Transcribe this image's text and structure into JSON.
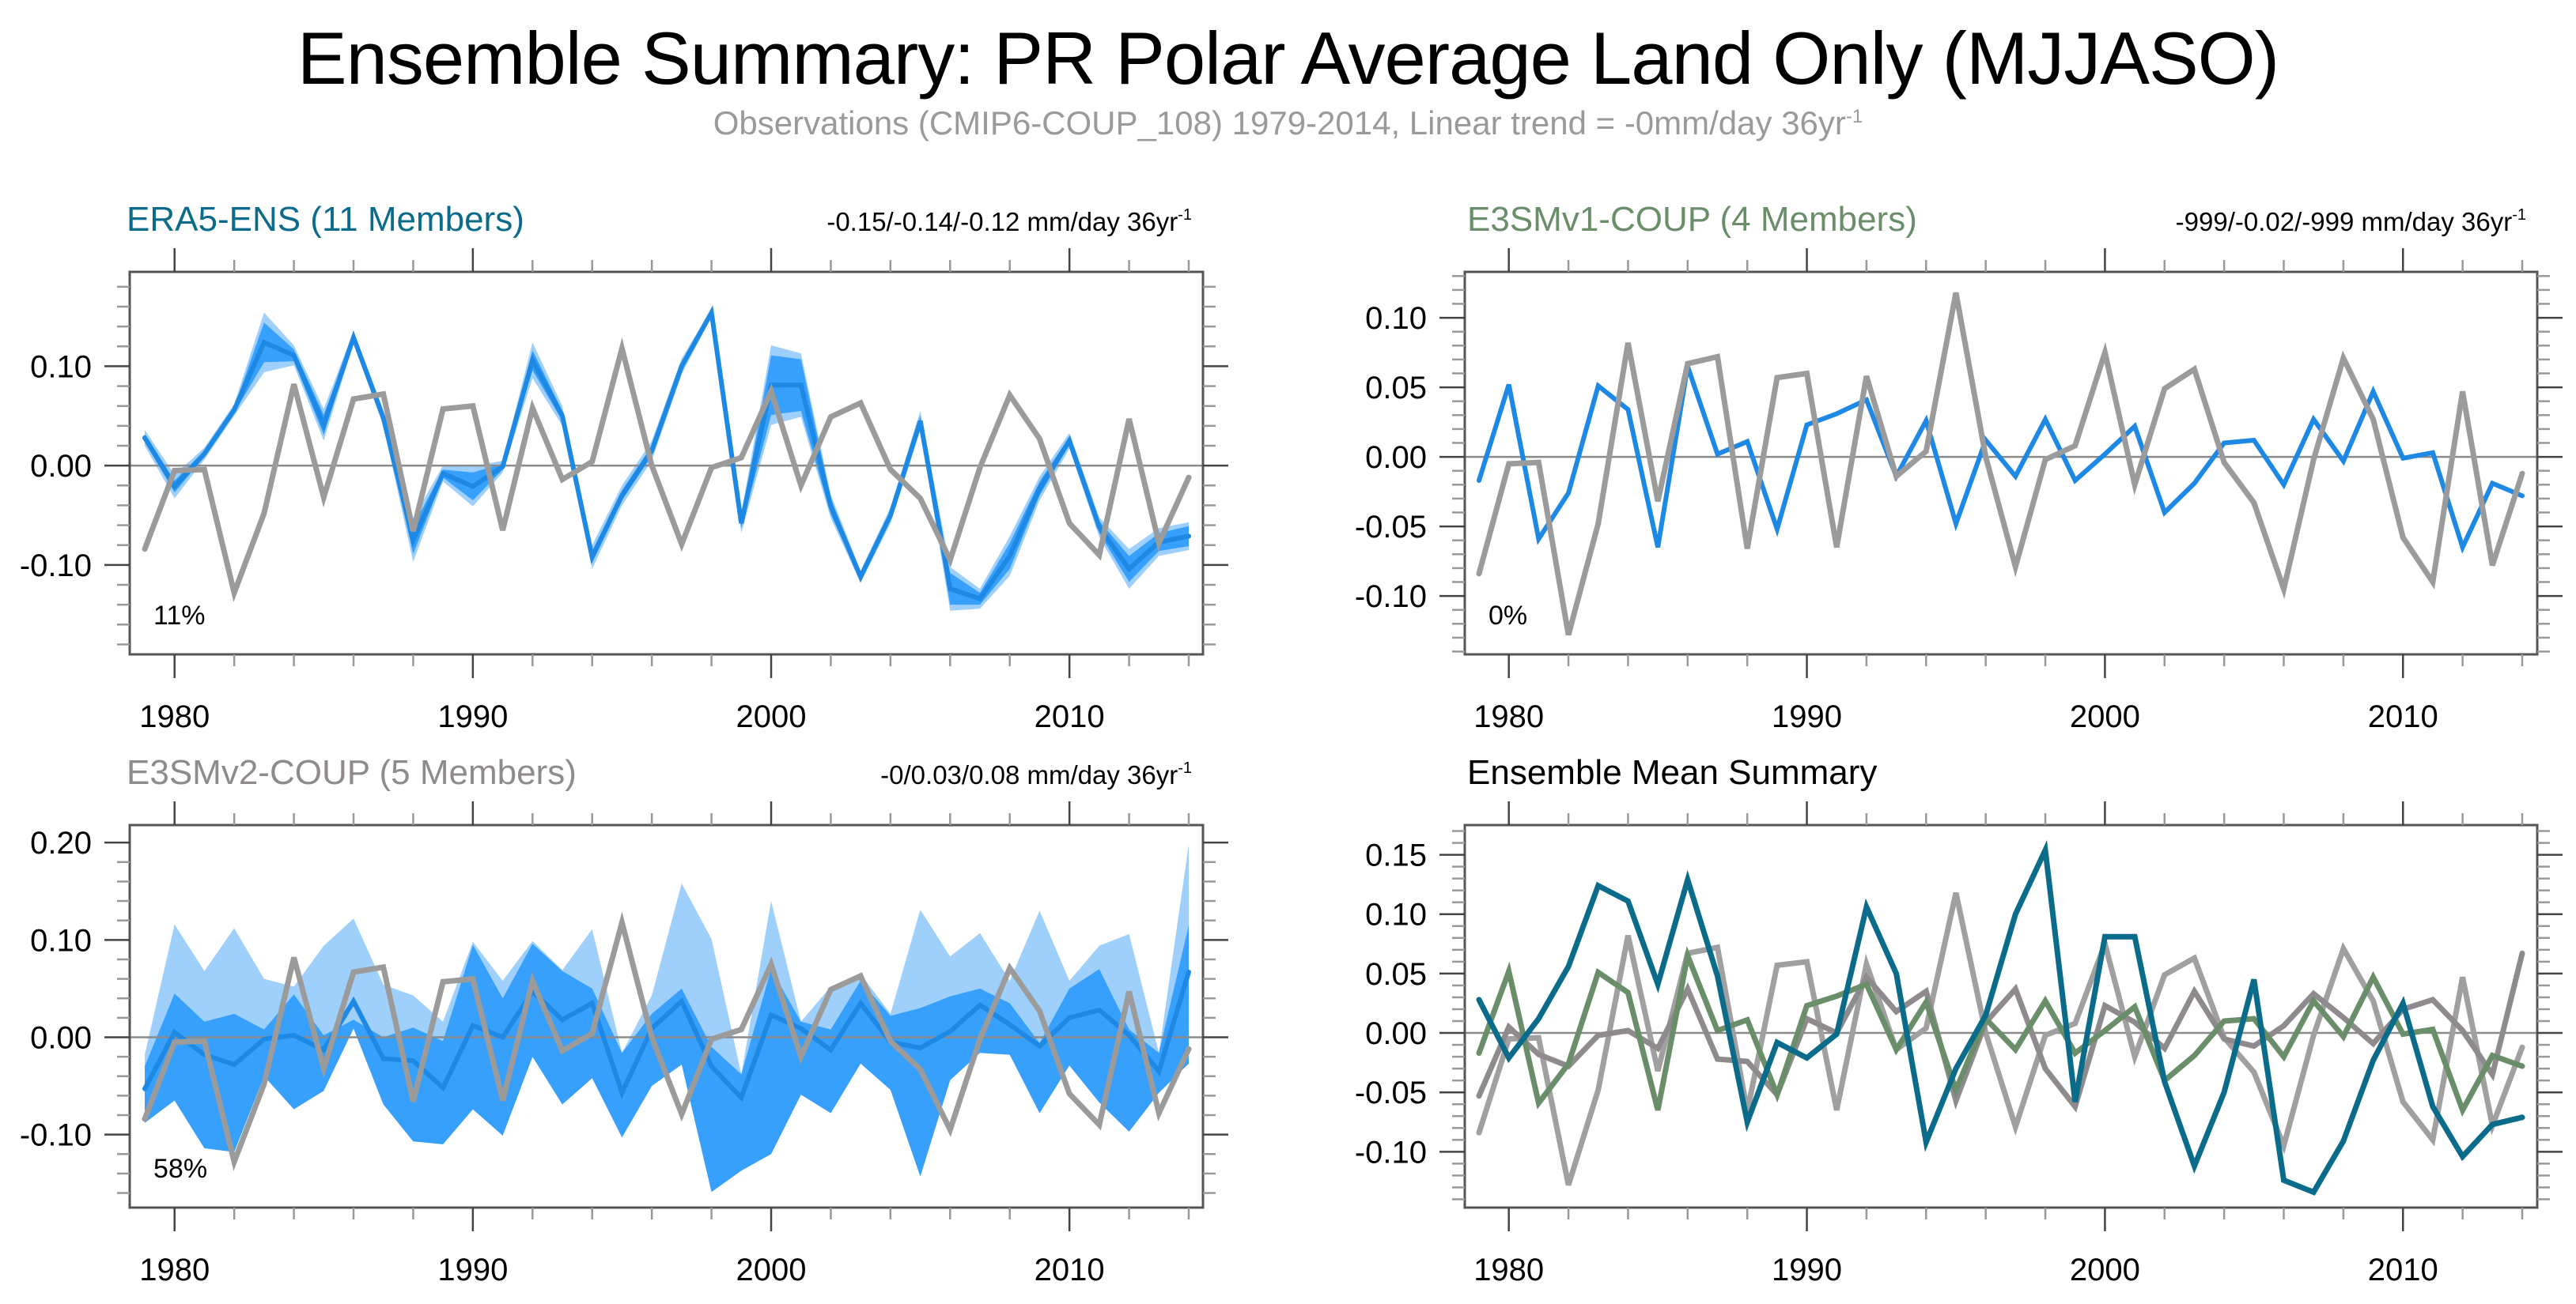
{
  "title": "Ensemble Summary: PR Polar Average Land Only (MJJASO)",
  "subtitle": {
    "text": "Observations (CMIP6-COUP_108) 1979-2014, Linear trend = -0mm/day 36yr",
    "superscript": "-1"
  },
  "colors": {
    "observations": "#9b9b9b",
    "member_line": "#1e88e5",
    "band_outer": "#9fd0fb",
    "band_inner": "#379ffc",
    "era5": "#0a6b8a",
    "e3smv1": "#6a8e6a",
    "e3smv2": "#8f8a8d",
    "zero_line": "#8a8a8a",
    "frame": "#555555"
  },
  "chart_data": [
    {
      "id": "era5",
      "type": "line",
      "title": "ERA5-ENS (11 Members)",
      "title_color": "#0a6b8a",
      "trend_label": "-0.15/-0.14/-0.12 mm/day 36yr",
      "trend_superscript": "-1",
      "percent_label": "11%",
      "xlabel": "",
      "ylabel": "",
      "xlim": [
        1979,
        2014
      ],
      "ylim": [
        -0.19,
        0.195
      ],
      "yticks_major": [
        -0.1,
        0.0,
        0.1
      ],
      "ytick_labels": [
        "-0.10",
        "0.00",
        "0.10"
      ],
      "ytick_minor_step": 0.02,
      "xticks_major": [
        1980,
        1990,
        2000,
        2010
      ],
      "xtick_labels": [
        "1980",
        "1990",
        "2000",
        "2010"
      ],
      "x": [
        1979,
        1980,
        1981,
        1982,
        1983,
        1984,
        1985,
        1986,
        1987,
        1988,
        1989,
        1990,
        1991,
        1992,
        1993,
        1994,
        1995,
        1996,
        1997,
        1998,
        1999,
        2000,
        2001,
        2002,
        2003,
        2004,
        2005,
        2006,
        2007,
        2008,
        2009,
        2010,
        2011,
        2012,
        2013,
        2014
      ],
      "bands": {
        "outer_spread": [
          0.008,
          0.012,
          0.006,
          0.006,
          0.03,
          0.01,
          0.016,
          0.006,
          0.008,
          0.022,
          0.008,
          0.02,
          0.006,
          0.018,
          0.01,
          0.012,
          0.01,
          0.01,
          0.008,
          0.004,
          0.01,
          0.04,
          0.032,
          0.012,
          0.006,
          0.008,
          0.01,
          0.022,
          0.01,
          0.02,
          0.012,
          0.008,
          0.01,
          0.02,
          0.014,
          0.014
        ],
        "inner_spread": [
          0.004,
          0.006,
          0.003,
          0.003,
          0.02,
          0.006,
          0.01,
          0.003,
          0.004,
          0.014,
          0.004,
          0.014,
          0.003,
          0.01,
          0.005,
          0.006,
          0.005,
          0.005,
          0.004,
          0.002,
          0.005,
          0.03,
          0.026,
          0.008,
          0.003,
          0.004,
          0.005,
          0.016,
          0.006,
          0.013,
          0.007,
          0.004,
          0.006,
          0.013,
          0.009,
          0.01
        ]
      },
      "series": [
        {
          "name": "ERA5-ENS ensemble mean",
          "role": "ensemble_mean",
          "values": [
            0.028,
            -0.021,
            0.012,
            0.056,
            0.124,
            0.111,
            0.041,
            0.129,
            0.048,
            -0.075,
            -0.008,
            -0.021,
            -0.001,
            0.106,
            0.05,
            -0.092,
            -0.03,
            0.015,
            0.1,
            0.154,
            -0.058,
            0.081,
            0.081,
            -0.041,
            -0.112,
            -0.05,
            0.045,
            -0.124,
            -0.134,
            -0.091,
            -0.023,
            0.025,
            -0.062,
            -0.104,
            -0.077,
            -0.071
          ]
        },
        {
          "name": "Observations (CMIP6-COUP_108)",
          "role": "observations",
          "values": [
            -0.084,
            -0.005,
            -0.004,
            -0.128,
            -0.048,
            0.082,
            -0.032,
            0.067,
            0.072,
            -0.066,
            0.057,
            0.06,
            -0.065,
            0.058,
            -0.014,
            0.004,
            0.118,
            0.0,
            -0.079,
            -0.002,
            0.008,
            0.075,
            -0.02,
            0.049,
            0.063,
            -0.004,
            -0.033,
            -0.095,
            -0.002,
            0.071,
            0.027,
            -0.058,
            -0.09,
            0.047,
            -0.078,
            -0.012
          ]
        }
      ]
    },
    {
      "id": "e3smv1",
      "type": "line",
      "title": "E3SMv1-COUP (4 Members)",
      "title_color": "#6a8e6a",
      "trend_label": "-999/-0.02/-999 mm/day 36yr",
      "trend_superscript": "-1",
      "percent_label": "0%",
      "xlabel": "",
      "ylabel": "",
      "xlim": [
        1979,
        2014
      ],
      "ylim": [
        -0.142,
        0.133
      ],
      "yticks_major": [
        -0.1,
        -0.05,
        0.0,
        0.05,
        0.1
      ],
      "ytick_labels": [
        "-0.10",
        "-0.05",
        "0.00",
        "0.05",
        "0.10"
      ],
      "ytick_minor_step": 0.01,
      "xticks_major": [
        1980,
        1990,
        2000,
        2010
      ],
      "xtick_labels": [
        "1980",
        "1990",
        "2000",
        "2010"
      ],
      "x": [
        1979,
        1980,
        1981,
        1982,
        1983,
        1984,
        1985,
        1986,
        1987,
        1988,
        1989,
        1990,
        1991,
        1992,
        1993,
        1994,
        1995,
        1996,
        1997,
        1998,
        1999,
        2000,
        2001,
        2002,
        2003,
        2004,
        2005,
        2006,
        2007,
        2008,
        2009,
        2010,
        2011,
        2012,
        2013,
        2014
      ],
      "series": [
        {
          "name": "E3SMv1-COUP ensemble mean",
          "role": "ensemble_mean",
          "values": [
            -0.017,
            0.052,
            -0.059,
            -0.026,
            0.051,
            0.034,
            -0.065,
            0.065,
            0.002,
            0.011,
            -0.052,
            0.023,
            0.031,
            0.041,
            -0.014,
            0.026,
            -0.048,
            0.012,
            -0.014,
            0.027,
            -0.017,
            0.002,
            0.022,
            -0.04,
            -0.019,
            0.01,
            0.012,
            -0.02,
            0.027,
            -0.003,
            0.047,
            -0.001,
            0.003,
            -0.065,
            -0.019,
            -0.028
          ]
        },
        {
          "name": "Observations (CMIP6-COUP_108)",
          "role": "observations",
          "values": [
            -0.084,
            -0.005,
            -0.004,
            -0.128,
            -0.048,
            0.082,
            -0.032,
            0.067,
            0.072,
            -0.066,
            0.057,
            0.06,
            -0.065,
            0.058,
            -0.014,
            0.004,
            0.118,
            0.0,
            -0.079,
            -0.002,
            0.008,
            0.075,
            -0.02,
            0.049,
            0.063,
            -0.004,
            -0.033,
            -0.095,
            -0.002,
            0.071,
            0.027,
            -0.058,
            -0.09,
            0.047,
            -0.078,
            -0.012
          ]
        }
      ]
    },
    {
      "id": "e3smv2",
      "type": "line",
      "title": "E3SMv2-COUP (5 Members)",
      "title_color": "#8f8a8d",
      "trend_label": "-0/0.03/0.08 mm/day 36yr",
      "trend_superscript": "-1",
      "percent_label": "58%",
      "xlabel": "",
      "ylabel": "",
      "xlim": [
        1979,
        2014
      ],
      "ylim": [
        -0.175,
        0.218
      ],
      "yticks_major": [
        -0.1,
        0.0,
        0.1,
        0.2
      ],
      "ytick_labels": [
        "-0.10",
        "0.00",
        "0.10",
        "0.20"
      ],
      "ytick_minor_step": 0.02,
      "xticks_major": [
        1980,
        1990,
        2000,
        2010
      ],
      "xtick_labels": [
        "1980",
        "1990",
        "2000",
        "2010"
      ],
      "x": [
        1979,
        1980,
        1981,
        1982,
        1983,
        1984,
        1985,
        1986,
        1987,
        1988,
        1989,
        1990,
        1991,
        1992,
        1993,
        1994,
        1995,
        1996,
        1997,
        1998,
        1999,
        2000,
        2001,
        2002,
        2003,
        2004,
        2005,
        2006,
        2007,
        2008,
        2009,
        2010,
        2011,
        2012,
        2013,
        2014
      ],
      "bands": {
        "outer_upper": [
          -0.018,
          0.116,
          0.068,
          0.112,
          0.06,
          0.052,
          0.094,
          0.122,
          0.054,
          0.043,
          0.016,
          0.098,
          0.058,
          0.099,
          0.069,
          0.111,
          -0.016,
          0.043,
          0.158,
          0.101,
          -0.038,
          0.14,
          0.016,
          0.052,
          0.065,
          0.024,
          0.131,
          0.083,
          0.107,
          0.058,
          0.13,
          0.058,
          0.094,
          0.106,
          -0.016,
          0.198
        ],
        "outer_lower": [
          -0.088,
          -0.065,
          -0.114,
          -0.118,
          -0.04,
          -0.074,
          -0.055,
          0.009,
          -0.069,
          -0.107,
          -0.11,
          -0.074,
          -0.101,
          -0.02,
          -0.069,
          -0.042,
          -0.103,
          -0.05,
          -0.028,
          -0.159,
          -0.137,
          -0.12,
          -0.059,
          -0.078,
          -0.027,
          -0.054,
          -0.143,
          -0.044,
          -0.016,
          -0.018,
          -0.078,
          -0.029,
          -0.067,
          -0.097,
          -0.057,
          -0.027
        ],
        "inner_upper": [
          -0.03,
          0.045,
          0.016,
          0.024,
          0.008,
          0.044,
          0.002,
          0.018,
          0.0,
          0.01,
          -0.004,
          0.095,
          0.04,
          0.096,
          0.068,
          0.05,
          -0.016,
          0.024,
          0.05,
          -0.01,
          -0.038,
          0.07,
          0.016,
          0.008,
          0.058,
          0.022,
          0.03,
          0.042,
          0.05,
          0.035,
          -0.006,
          0.05,
          0.07,
          0.008,
          -0.016,
          0.115
        ],
        "inner_lower": [
          -0.088,
          -0.065,
          -0.114,
          -0.118,
          -0.04,
          -0.074,
          -0.055,
          0.009,
          -0.069,
          -0.107,
          -0.11,
          -0.074,
          -0.101,
          -0.02,
          -0.069,
          -0.042,
          -0.103,
          -0.05,
          -0.028,
          -0.159,
          -0.137,
          -0.12,
          -0.059,
          -0.078,
          -0.027,
          -0.054,
          -0.143,
          -0.044,
          -0.016,
          -0.018,
          -0.078,
          -0.029,
          -0.067,
          -0.097,
          -0.057,
          -0.027
        ]
      },
      "series": [
        {
          "name": "E3SMv2-COUP ensemble mean",
          "role": "ensemble_mean",
          "values": [
            -0.053,
            0.005,
            -0.018,
            -0.028,
            -0.002,
            0.002,
            -0.013,
            0.037,
            -0.022,
            -0.024,
            -0.052,
            0.012,
            0.0,
            0.047,
            0.018,
            0.035,
            -0.057,
            0.009,
            0.037,
            -0.03,
            -0.062,
            0.023,
            0.009,
            -0.013,
            0.035,
            -0.005,
            -0.011,
            0.006,
            0.033,
            0.013,
            -0.009,
            0.02,
            0.028,
            0.002,
            -0.035,
            0.067
          ]
        },
        {
          "name": "Observations (CMIP6-COUP_108)",
          "role": "observations",
          "values": [
            -0.084,
            -0.005,
            -0.004,
            -0.128,
            -0.048,
            0.082,
            -0.032,
            0.067,
            0.072,
            -0.066,
            0.057,
            0.06,
            -0.065,
            0.058,
            -0.014,
            0.004,
            0.118,
            0.0,
            -0.079,
            -0.002,
            0.008,
            0.075,
            -0.02,
            0.049,
            0.063,
            -0.004,
            -0.033,
            -0.095,
            -0.002,
            0.071,
            0.027,
            -0.058,
            -0.09,
            0.047,
            -0.078,
            -0.012
          ]
        }
      ]
    },
    {
      "id": "summary",
      "type": "line",
      "title": "Ensemble Mean Summary",
      "title_color": "#000000",
      "xlabel": "",
      "ylabel": "",
      "xlim": [
        1979,
        2014
      ],
      "ylim": [
        -0.147,
        0.175
      ],
      "yticks_major": [
        -0.1,
        -0.05,
        0.0,
        0.05,
        0.1,
        0.15
      ],
      "ytick_labels": [
        "-0.10",
        "-0.05",
        "0.00",
        "0.05",
        "0.10",
        "0.15"
      ],
      "ytick_minor_step": 0.01,
      "xticks_major": [
        1980,
        1990,
        2000,
        2010
      ],
      "xtick_labels": [
        "1980",
        "1990",
        "2000",
        "2010"
      ],
      "x": [
        1979,
        1980,
        1981,
        1982,
        1983,
        1984,
        1985,
        1986,
        1987,
        1988,
        1989,
        1990,
        1991,
        1992,
        1993,
        1994,
        1995,
        1996,
        1997,
        1998,
        1999,
        2000,
        2001,
        2002,
        2003,
        2004,
        2005,
        2006,
        2007,
        2008,
        2009,
        2010,
        2011,
        2012,
        2013,
        2014
      ],
      "series": [
        {
          "name": "Observations (CMIP6-COUP_108)",
          "color": "#a0a0a0",
          "values": [
            -0.084,
            -0.005,
            -0.004,
            -0.128,
            -0.048,
            0.082,
            -0.032,
            0.067,
            0.072,
            -0.066,
            0.057,
            0.06,
            -0.065,
            0.058,
            -0.014,
            0.004,
            0.118,
            0.0,
            -0.079,
            -0.002,
            0.008,
            0.075,
            -0.02,
            0.049,
            0.063,
            -0.004,
            -0.033,
            -0.095,
            -0.002,
            0.071,
            0.027,
            -0.058,
            -0.09,
            0.047,
            -0.078,
            -0.012
          ]
        },
        {
          "name": "E3SMv2-COUP ensemble mean",
          "color": "#8f8a8d",
          "values": [
            -0.053,
            0.005,
            -0.018,
            -0.028,
            -0.002,
            0.002,
            -0.013,
            0.037,
            -0.022,
            -0.024,
            -0.052,
            0.012,
            0.0,
            0.047,
            0.018,
            0.035,
            -0.057,
            0.009,
            0.037,
            -0.03,
            -0.062,
            0.023,
            0.009,
            -0.013,
            0.035,
            -0.005,
            -0.011,
            0.006,
            0.033,
            0.013,
            -0.009,
            0.02,
            0.028,
            0.002,
            -0.035,
            0.067
          ]
        },
        {
          "name": "E3SMv1-COUP ensemble mean",
          "color": "#6a8e6a",
          "values": [
            -0.017,
            0.052,
            -0.059,
            -0.026,
            0.051,
            0.034,
            -0.065,
            0.065,
            0.002,
            0.011,
            -0.052,
            0.023,
            0.031,
            0.041,
            -0.014,
            0.026,
            -0.048,
            0.012,
            -0.014,
            0.027,
            -0.017,
            0.002,
            0.022,
            -0.04,
            -0.019,
            0.01,
            0.012,
            -0.02,
            0.027,
            -0.003,
            0.047,
            -0.001,
            0.003,
            -0.065,
            -0.019,
            -0.028
          ]
        },
        {
          "name": "ERA5-ENS ensemble mean",
          "color": "#0a6b8a",
          "values": [
            0.028,
            -0.021,
            0.012,
            0.056,
            0.124,
            0.111,
            0.041,
            0.129,
            0.048,
            -0.075,
            -0.008,
            -0.021,
            -0.001,
            0.106,
            0.05,
            -0.092,
            -0.03,
            0.015,
            0.1,
            0.154,
            -0.058,
            0.081,
            0.081,
            -0.041,
            -0.112,
            -0.05,
            0.045,
            -0.124,
            -0.134,
            -0.091,
            -0.023,
            0.025,
            -0.062,
            -0.104,
            -0.077,
            -0.071
          ]
        }
      ]
    }
  ]
}
